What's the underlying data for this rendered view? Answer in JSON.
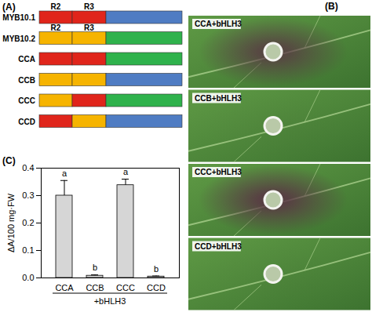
{
  "panel_labels": [
    "(A)",
    "(B)",
    "(C)"
  ],
  "diagram": {
    "constructs": [
      {
        "name": "MYB10.1",
        "colors": [
          "#e0251b",
          "#e0251b",
          "#4f7cc3"
        ],
        "labels": [
          "R2",
          "R3"
        ]
      },
      {
        "name": "MYB10.2",
        "colors": [
          "#f6b400",
          "#f6b400",
          "#2fb24c"
        ],
        "labels": [
          "R2",
          "R3"
        ]
      },
      {
        "name": "CCA",
        "colors": [
          "#e0251b",
          "#e0251b",
          "#2fb24c"
        ]
      },
      {
        "name": "CCB",
        "colors": [
          "#f6b400",
          "#f6b400",
          "#4f7cc3"
        ]
      },
      {
        "name": "CCC",
        "colors": [
          "#f6b400",
          "#e0251b",
          "#2fb24c"
        ]
      },
      {
        "name": "CCD",
        "colors": [
          "#e0251b",
          "#f6b400",
          "#4f7cc3"
        ]
      }
    ]
  },
  "photos": {
    "labels": [
      "CCA+bHLH3",
      "CCB+bHLH3",
      "CCC+bHLH3",
      "CCD+bHLH3"
    ]
  },
  "chart_data": {
    "type": "bar",
    "categories": [
      "CCA",
      "CCB",
      "CCC",
      "CCD"
    ],
    "values": [
      0.3,
      0.008,
      0.338,
      0.005
    ],
    "errors": [
      0.055,
      0.003,
      0.022,
      0.002
    ],
    "significance": [
      "a",
      "b",
      "a",
      "b"
    ],
    "y_label": "ΔA/100 mg·FW",
    "x_group_label": "+bHLH3",
    "color": "#d6d6d6",
    "ylim": [
      0,
      0.4
    ],
    "yticks": [
      {
        "value": 0,
        "label": "0.0"
      },
      {
        "value": 0.1,
        "label": "0.1"
      },
      {
        "value": 0.2,
        "label": "0.2"
      },
      {
        "value": 0.3,
        "label": "0.3"
      },
      {
        "value": 0.4,
        "label": "0.4"
      }
    ]
  }
}
